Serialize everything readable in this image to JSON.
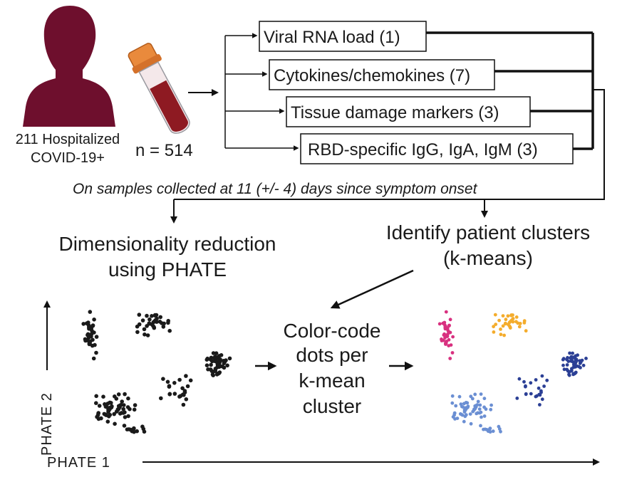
{
  "patients": {
    "count_label": "211 Hospitalized",
    "group_label": "COVID-19+"
  },
  "samples": {
    "label": "n = 514"
  },
  "assays": [
    {
      "label": "Viral RNA load (1)"
    },
    {
      "label": "Cytokines/chemokines (7)"
    },
    {
      "label": "Tissue damage markers (3)"
    },
    {
      "label": "RBD-specific IgG, IgA, IgM (3)"
    }
  ],
  "sampling_note": "On samples collected at 11 (+/- 4) days since symptom onset",
  "steps": {
    "dim_reduction": [
      "Dimensionality reduction",
      "using PHATE"
    ],
    "clustering": [
      "Identify patient clusters",
      "(k-means)"
    ],
    "color_code": [
      "Color-code",
      "dots per",
      "k-mean",
      "cluster"
    ]
  },
  "axes": {
    "x_label": "PHATE 1",
    "y_label": "PHATE 2"
  },
  "colors": {
    "silhouette": "#6e0f2d",
    "tube_cap": "#e98a3c",
    "tube_blood": "#8e1a22",
    "dot_uncolored": "#1a1a1a",
    "cluster_magenta": "#d8307f",
    "cluster_orange": "#f4ac2c",
    "cluster_lightblue": "#6b8fd3",
    "cluster_navy": "#2b3f95"
  }
}
